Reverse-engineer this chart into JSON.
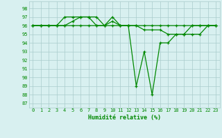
{
  "xlabel": "Humidité relative (%)",
  "xlim": [
    -0.5,
    23.5
  ],
  "ylim": [
    86.5,
    98.8
  ],
  "yticks": [
    87,
    88,
    89,
    90,
    91,
    92,
    93,
    94,
    95,
    96,
    97,
    98
  ],
  "xticks": [
    0,
    1,
    2,
    3,
    4,
    5,
    6,
    7,
    8,
    9,
    10,
    11,
    12,
    13,
    14,
    15,
    16,
    17,
    18,
    19,
    20,
    21,
    22,
    23
  ],
  "bg_color": "#d8f0f0",
  "grid_color": "#aacccc",
  "line_color": "#008800",
  "lines": [
    {
      "x": [
        0,
        1,
        2,
        3,
        4,
        5,
        6,
        7,
        8,
        9,
        10,
        11,
        12,
        13,
        14,
        15,
        16,
        17,
        18,
        19,
        20,
        21,
        22,
        23
      ],
      "y": [
        96,
        96,
        96,
        96,
        97,
        97,
        97,
        97,
        96,
        96,
        96,
        96,
        96,
        96,
        95.5,
        95.5,
        95.5,
        95,
        95,
        95,
        95,
        95,
        96,
        96
      ]
    },
    {
      "x": [
        0,
        1,
        2,
        3,
        4,
        5,
        6,
        7,
        8,
        9,
        10,
        11,
        12,
        13,
        14,
        15,
        16,
        17,
        18,
        19,
        20,
        21,
        22,
        23
      ],
      "y": [
        96,
        96,
        96,
        96,
        96,
        96.5,
        97,
        97,
        97,
        96,
        96.5,
        96,
        96,
        96,
        96,
        96,
        96,
        96,
        96,
        96,
        96,
        96,
        96,
        96
      ]
    },
    {
      "x": [
        0,
        1,
        2,
        3,
        4,
        5,
        6,
        7,
        8,
        9,
        10,
        11,
        12,
        13,
        14,
        15,
        16,
        17,
        18,
        19,
        20,
        21,
        22,
        23
      ],
      "y": [
        96,
        96,
        96,
        96,
        96,
        96,
        96,
        96,
        96,
        96,
        97,
        96,
        96,
        89,
        93,
        88,
        94,
        94,
        95,
        95,
        96,
        96,
        96,
        96
      ]
    }
  ]
}
